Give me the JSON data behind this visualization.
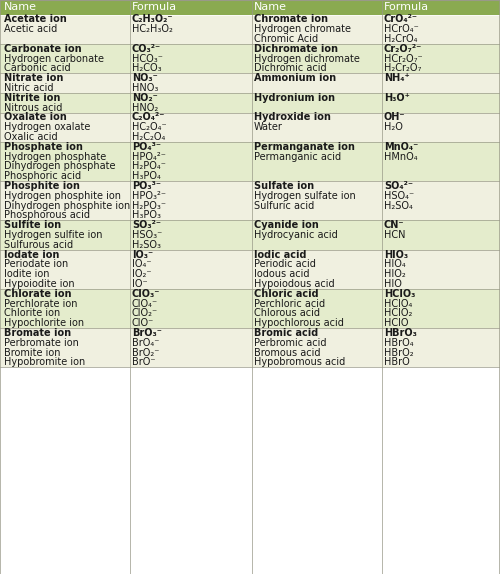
{
  "header_bg": "#8aaa50",
  "row_bg_light": "#f0f0e0",
  "row_bg_green": "#e4eccc",
  "border_color": "#999988",
  "groups": [
    {
      "left": [
        [
          "Acetate ion",
          "C₂H₃O₂⁻"
        ],
        [
          "Acetic acid",
          "HC₂H₃O₂"
        ]
      ],
      "right": [
        [
          "Chromate ion",
          "CrO₄²⁻"
        ],
        [
          "Hydrogen chromate",
          "HCrO₄⁻"
        ],
        [
          "Chromic Acid",
          "H₂CrO₄"
        ]
      ],
      "bg": "light"
    },
    {
      "left": [
        [
          "Carbonate ion",
          "CO₃²⁻"
        ],
        [
          "Hydrogen carbonate",
          "HCO₃⁻"
        ],
        [
          "Carbonic acid",
          "H₂CO₃"
        ]
      ],
      "right": [
        [
          "Dichromate ion",
          "Cr₂O₇²⁻"
        ],
        [
          "Hydrogen dichromate",
          "HCr₂O₇⁻"
        ],
        [
          "Dichromic acid",
          "H₂Cr₂O₇"
        ]
      ],
      "bg": "green"
    },
    {
      "left": [
        [
          "Nitrate ion",
          "NO₃⁻"
        ],
        [
          "Nitric acid",
          "HNO₃"
        ]
      ],
      "right": [
        [
          "Ammonium ion",
          "NH₄⁺"
        ],
        [
          "",
          ""
        ]
      ],
      "bg": "light"
    },
    {
      "left": [
        [
          "Nitrite ion",
          "NO₂⁻"
        ],
        [
          "Nitrous acid",
          "HNO₂"
        ]
      ],
      "right": [
        [
          "Hydronium ion",
          "H₃O⁺"
        ],
        [
          "",
          ""
        ]
      ],
      "bg": "green"
    },
    {
      "left": [
        [
          "Oxalate ion",
          "C₂O₄²⁻"
        ],
        [
          "Hydrogen oxalate",
          "HC₂O₄⁻"
        ],
        [
          "Oxalic acid",
          "H₂C₂O₄"
        ]
      ],
      "right": [
        [
          "Hydroxide ion",
          "OH⁻"
        ],
        [
          "Water",
          "H₂O"
        ],
        [
          "",
          ""
        ]
      ],
      "bg": "light"
    },
    {
      "left": [
        [
          "Phosphate ion",
          "PO₄³⁻"
        ],
        [
          "Hydrogen phosphate",
          "HPO₄²⁻"
        ],
        [
          "Dihydrogen phosphate",
          "H₂PO₄⁻"
        ],
        [
          "Phosphoric acid",
          "H₃PO₄"
        ]
      ],
      "right": [
        [
          "Permanganate ion",
          "MnO₄⁻"
        ],
        [
          "Permanganic acid",
          "HMnO₄"
        ],
        [
          "",
          ""
        ],
        [
          "",
          ""
        ]
      ],
      "bg": "green"
    },
    {
      "left": [
        [
          "Phosphite ion",
          "PO₃³⁻"
        ],
        [
          "Hydrogen phosphite ion",
          "HPO₃²⁻"
        ],
        [
          "Dihydrogen phosphite ion",
          "H₂PO₃⁻"
        ],
        [
          "Phosphorous acid",
          "H₃PO₃"
        ]
      ],
      "right": [
        [
          "Sulfate ion",
          "SO₄²⁻"
        ],
        [
          "Hydrogen sulfate ion",
          "HSO₄⁻"
        ],
        [
          "Sulfuric acid",
          "H₂SO₄"
        ],
        [
          "",
          ""
        ]
      ],
      "bg": "light"
    },
    {
      "left": [
        [
          "Sulfite ion",
          "SO₃²⁻"
        ],
        [
          "Hydrogen sulfite ion",
          "HSO₃⁻"
        ],
        [
          "Sulfurous acid",
          "H₂SO₃"
        ]
      ],
      "right": [
        [
          "Cyanide ion",
          "CN⁻"
        ],
        [
          "Hydrocyanic acid",
          "HCN"
        ],
        [
          "",
          ""
        ]
      ],
      "bg": "green"
    },
    {
      "left": [
        [
          "Iodate ion",
          "IO₃⁻"
        ],
        [
          "Periodate ion",
          "IO₄⁻"
        ],
        [
          "Iodite ion",
          "IO₂⁻"
        ],
        [
          "Hypoiodite ion",
          "IO⁻"
        ]
      ],
      "right": [
        [
          "Iodic acid",
          "HIO₃"
        ],
        [
          "Periodic acid",
          "HIO₄"
        ],
        [
          "Iodous acid",
          "HIO₂"
        ],
        [
          "Hypoiodous acid",
          "HIO"
        ]
      ],
      "bg": "light"
    },
    {
      "left": [
        [
          "Chlorate ion",
          "ClO₃⁻"
        ],
        [
          "Perchlorate ion",
          "ClO₄⁻"
        ],
        [
          "Chlorite ion",
          "ClO₂⁻"
        ],
        [
          "Hypochlorite ion",
          "ClO⁻"
        ]
      ],
      "right": [
        [
          "Chloric acid",
          "HClO₃"
        ],
        [
          "Perchloric acid",
          "HClO₄"
        ],
        [
          "Chlorous acid",
          "HClO₂"
        ],
        [
          "Hypochlorous acid",
          "HClO"
        ]
      ],
      "bg": "green"
    },
    {
      "left": [
        [
          "Bromate ion",
          "BrO₃⁻"
        ],
        [
          "Perbromate ion",
          "BrO₄⁻"
        ],
        [
          "Bromite ion",
          "BrO₂⁻"
        ],
        [
          "Hypobromite ion",
          "BrO⁻"
        ]
      ],
      "right": [
        [
          "Bromic acid",
          "HBrO₃"
        ],
        [
          "Perbromic acid",
          "HBrO₄"
        ],
        [
          "Bromous acid",
          "HBrO₂"
        ],
        [
          "Hypobromous acid",
          "HBrO"
        ]
      ],
      "bg": "light"
    }
  ]
}
